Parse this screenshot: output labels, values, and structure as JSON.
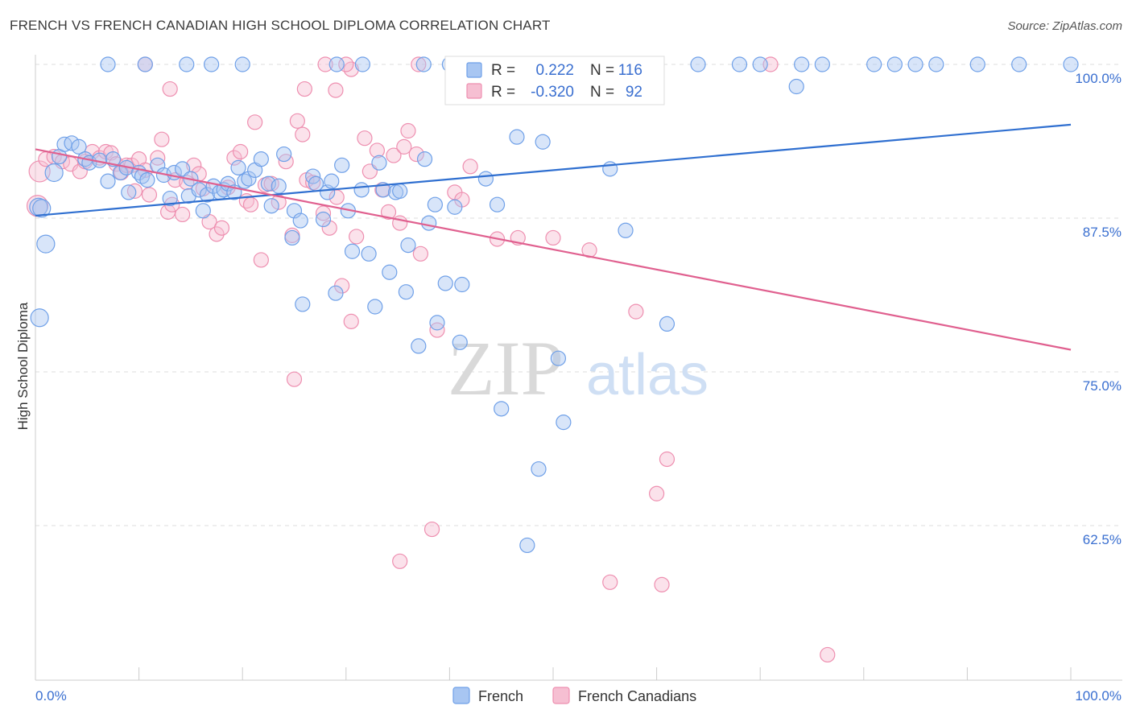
{
  "title": "FRENCH VS FRENCH CANADIAN HIGH SCHOOL DIPLOMA CORRELATION CHART",
  "source": "Source: ZipAtlas.com",
  "watermark": {
    "zip": "ZIP",
    "atlas": "atlas"
  },
  "colors": {
    "french": "#6fa0e8",
    "french_fill": "#a8c6f2",
    "french_line": "#2f6fd0",
    "canadian": "#ee8fb0",
    "canadian_fill": "#f6bfd2",
    "canadian_line": "#e0608f",
    "tick_text": "#3a6fd0",
    "grid": "#dddddd"
  },
  "legend_top": {
    "rows": [
      {
        "r_label": "R =",
        "r_value": "0.222",
        "n_label": "N =",
        "n_value": "116"
      },
      {
        "r_label": "R =",
        "r_value": "-0.320",
        "n_label": "N =",
        "n_value": "92"
      }
    ]
  },
  "legend_bottom": [
    "French",
    "French Canadians"
  ],
  "chart_data": {
    "type": "scatter",
    "title": "FRENCH VS FRENCH CANADIAN HIGH SCHOOL DIPLOMA CORRELATION CHART",
    "xlabel": "",
    "ylabel": "High School Diploma",
    "xlim": [
      0,
      100
    ],
    "ylim": [
      50.0,
      100.9
    ],
    "x_tick_labels": [
      "0.0%",
      "100.0%"
    ],
    "y_ticks": [
      62.5,
      75.0,
      87.5,
      100.0
    ],
    "y_tick_labels": [
      "62.5%",
      "75.0%",
      "87.5%",
      "100.0%"
    ],
    "grid": true,
    "legend_placement": "top-center",
    "series": [
      {
        "name": "French",
        "r": 0.222,
        "n": 116,
        "trend": {
          "x": [
            0,
            100
          ],
          "y": [
            87.7,
            95.1
          ]
        },
        "points": [
          [
            0.3,
            88.4
          ],
          [
            0.6,
            88.3
          ],
          [
            0.4,
            79.4
          ],
          [
            1.0,
            85.4
          ],
          [
            1.8,
            91.2
          ],
          [
            2.3,
            92.5
          ],
          [
            2.8,
            93.5
          ],
          [
            3.5,
            93.6
          ],
          [
            4.2,
            93.3
          ],
          [
            4.8,
            92.3
          ],
          [
            5.2,
            92.0
          ],
          [
            6.2,
            92.2
          ],
          [
            7.0,
            90.5
          ],
          [
            7.5,
            92.3
          ],
          [
            8.2,
            91.2
          ],
          [
            8.8,
            91.6
          ],
          [
            9.0,
            89.6
          ],
          [
            10.0,
            91.2
          ],
          [
            10.3,
            90.9
          ],
          [
            10.8,
            90.6
          ],
          [
            11.8,
            91.8
          ],
          [
            12.4,
            91.0
          ],
          [
            13.0,
            89.1
          ],
          [
            13.4,
            91.2
          ],
          [
            14.2,
            91.5
          ],
          [
            14.8,
            89.3
          ],
          [
            15.0,
            90.7
          ],
          [
            15.8,
            89.8
          ],
          [
            16.2,
            88.1
          ],
          [
            16.6,
            89.4
          ],
          [
            17.2,
            90.1
          ],
          [
            17.8,
            89.6
          ],
          [
            18.2,
            89.8
          ],
          [
            18.6,
            90.3
          ],
          [
            19.2,
            89.6
          ],
          [
            19.6,
            91.6
          ],
          [
            20.2,
            90.5
          ],
          [
            20.6,
            90.7
          ],
          [
            21.2,
            91.4
          ],
          [
            21.8,
            92.3
          ],
          [
            22.5,
            90.3
          ],
          [
            22.8,
            88.5
          ],
          [
            23.5,
            90.1
          ],
          [
            24.0,
            92.7
          ],
          [
            24.8,
            85.9
          ],
          [
            25.0,
            88.1
          ],
          [
            25.6,
            87.3
          ],
          [
            25.8,
            80.5
          ],
          [
            26.8,
            90.9
          ],
          [
            27.1,
            90.3
          ],
          [
            27.8,
            87.4
          ],
          [
            28.2,
            89.6
          ],
          [
            28.6,
            90.5
          ],
          [
            29.0,
            81.4
          ],
          [
            29.6,
            91.8
          ],
          [
            30.2,
            88.1
          ],
          [
            30.6,
            84.8
          ],
          [
            31.5,
            89.8
          ],
          [
            32.2,
            84.6
          ],
          [
            32.8,
            80.3
          ],
          [
            33.2,
            92.0
          ],
          [
            33.6,
            89.8
          ],
          [
            34.2,
            83.1
          ],
          [
            34.8,
            89.6
          ],
          [
            35.2,
            89.7
          ],
          [
            35.8,
            81.5
          ],
          [
            36.0,
            85.3
          ],
          [
            37.0,
            77.1
          ],
          [
            37.6,
            92.3
          ],
          [
            38.0,
            87.1
          ],
          [
            38.6,
            88.6
          ],
          [
            38.8,
            79.0
          ],
          [
            39.6,
            82.2
          ],
          [
            40.5,
            88.4
          ],
          [
            41.0,
            77.4
          ],
          [
            41.2,
            82.1
          ],
          [
            43.5,
            90.7
          ],
          [
            44.6,
            88.6
          ],
          [
            45.0,
            72.0
          ],
          [
            46.5,
            94.1
          ],
          [
            47.5,
            60.9
          ],
          [
            48.6,
            67.1
          ],
          [
            49.0,
            93.7
          ],
          [
            50.5,
            76.1
          ],
          [
            51.0,
            70.9
          ],
          [
            55.5,
            91.5
          ],
          [
            57.0,
            86.5
          ],
          [
            61.0,
            78.9
          ],
          [
            73.5,
            98.2
          ],
          [
            100.0,
            100.0
          ],
          [
            7.0,
            100.0
          ],
          [
            10.6,
            100.0
          ],
          [
            14.6,
            100.0
          ],
          [
            17.0,
            100.0
          ],
          [
            20.0,
            100.0
          ],
          [
            29.1,
            100.0
          ],
          [
            31.6,
            100.0
          ],
          [
            37.5,
            100.0
          ],
          [
            40.0,
            100.0
          ],
          [
            42.0,
            100.0
          ],
          [
            44.0,
            100.0
          ],
          [
            48.0,
            100.0
          ],
          [
            53.0,
            100.0
          ],
          [
            55.0,
            100.0
          ],
          [
            60.0,
            100.0
          ],
          [
            64.0,
            100.0
          ],
          [
            68.0,
            100.0
          ],
          [
            70.0,
            100.0
          ],
          [
            74.0,
            100.0
          ],
          [
            76.0,
            100.0
          ],
          [
            81.0,
            100.0
          ],
          [
            83.0,
            100.0
          ],
          [
            85.0,
            100.0
          ],
          [
            87.0,
            100.0
          ],
          [
            91.0,
            100.0
          ],
          [
            95.0,
            100.0
          ]
        ]
      },
      {
        "name": "French Canadians",
        "r": -0.32,
        "n": 92,
        "trend": {
          "x": [
            0,
            100
          ],
          "y": [
            93.1,
            76.8
          ]
        },
        "points": [
          [
            0.2,
            88.5
          ],
          [
            0.4,
            91.3
          ],
          [
            1.0,
            92.3
          ],
          [
            1.8,
            92.5
          ],
          [
            2.6,
            92.1
          ],
          [
            3.4,
            91.9
          ],
          [
            4.3,
            91.3
          ],
          [
            4.8,
            92.1
          ],
          [
            5.5,
            92.9
          ],
          [
            6.2,
            92.4
          ],
          [
            6.8,
            92.9
          ],
          [
            7.3,
            92.8
          ],
          [
            7.8,
            91.9
          ],
          [
            8.3,
            91.2
          ],
          [
            8.8,
            91.8
          ],
          [
            9.3,
            91.8
          ],
          [
            9.6,
            89.7
          ],
          [
            10.0,
            92.3
          ],
          [
            10.6,
            91.4
          ],
          [
            11.0,
            89.4
          ],
          [
            11.8,
            92.4
          ],
          [
            12.2,
            93.9
          ],
          [
            12.8,
            88.0
          ],
          [
            13.2,
            88.6
          ],
          [
            13.5,
            90.6
          ],
          [
            14.2,
            87.8
          ],
          [
            14.6,
            90.4
          ],
          [
            15.3,
            91.8
          ],
          [
            15.8,
            91.1
          ],
          [
            16.2,
            89.9
          ],
          [
            16.8,
            87.2
          ],
          [
            17.5,
            86.2
          ],
          [
            18.0,
            86.7
          ],
          [
            18.6,
            90.0
          ],
          [
            19.2,
            92.4
          ],
          [
            19.8,
            92.9
          ],
          [
            20.4,
            88.9
          ],
          [
            20.8,
            88.6
          ],
          [
            21.2,
            95.3
          ],
          [
            21.8,
            84.1
          ],
          [
            22.2,
            90.2
          ],
          [
            22.8,
            90.3
          ],
          [
            23.5,
            88.8
          ],
          [
            24.2,
            92.1
          ],
          [
            24.8,
            86.1
          ],
          [
            25.3,
            95.4
          ],
          [
            25.8,
            94.3
          ],
          [
            26.2,
            90.6
          ],
          [
            26.8,
            90.4
          ],
          [
            27.8,
            87.9
          ],
          [
            28.4,
            86.7
          ],
          [
            29.1,
            89.2
          ],
          [
            29.6,
            82.0
          ],
          [
            30.5,
            79.1
          ],
          [
            31.0,
            86.0
          ],
          [
            31.8,
            94.0
          ],
          [
            32.3,
            91.3
          ],
          [
            33.0,
            93.0
          ],
          [
            33.5,
            89.8
          ],
          [
            34.1,
            88.0
          ],
          [
            34.6,
            92.6
          ],
          [
            35.2,
            87.1
          ],
          [
            35.6,
            93.3
          ],
          [
            36.0,
            94.6
          ],
          [
            36.8,
            92.7
          ],
          [
            37.2,
            84.6
          ],
          [
            38.3,
            62.2
          ],
          [
            38.8,
            78.4
          ],
          [
            40.5,
            89.6
          ],
          [
            41.2,
            89.0
          ],
          [
            42.0,
            91.7
          ],
          [
            44.6,
            85.8
          ],
          [
            46.6,
            85.9
          ],
          [
            50.0,
            85.9
          ],
          [
            53.5,
            84.9
          ],
          [
            58.0,
            79.9
          ],
          [
            60.0,
            65.1
          ],
          [
            61.0,
            67.9
          ],
          [
            25.0,
            74.4
          ],
          [
            26.0,
            98.0
          ],
          [
            13.0,
            98.0
          ],
          [
            29.0,
            97.9
          ],
          [
            30.5,
            99.6
          ],
          [
            55.5,
            57.9
          ],
          [
            60.5,
            57.7
          ],
          [
            76.5,
            52.0
          ],
          [
            35.2,
            59.6
          ],
          [
            10.6,
            100.0
          ],
          [
            28.0,
            100.0
          ],
          [
            30.0,
            100.0
          ],
          [
            37.0,
            100.0
          ],
          [
            71.0,
            100.0
          ]
        ]
      }
    ]
  }
}
